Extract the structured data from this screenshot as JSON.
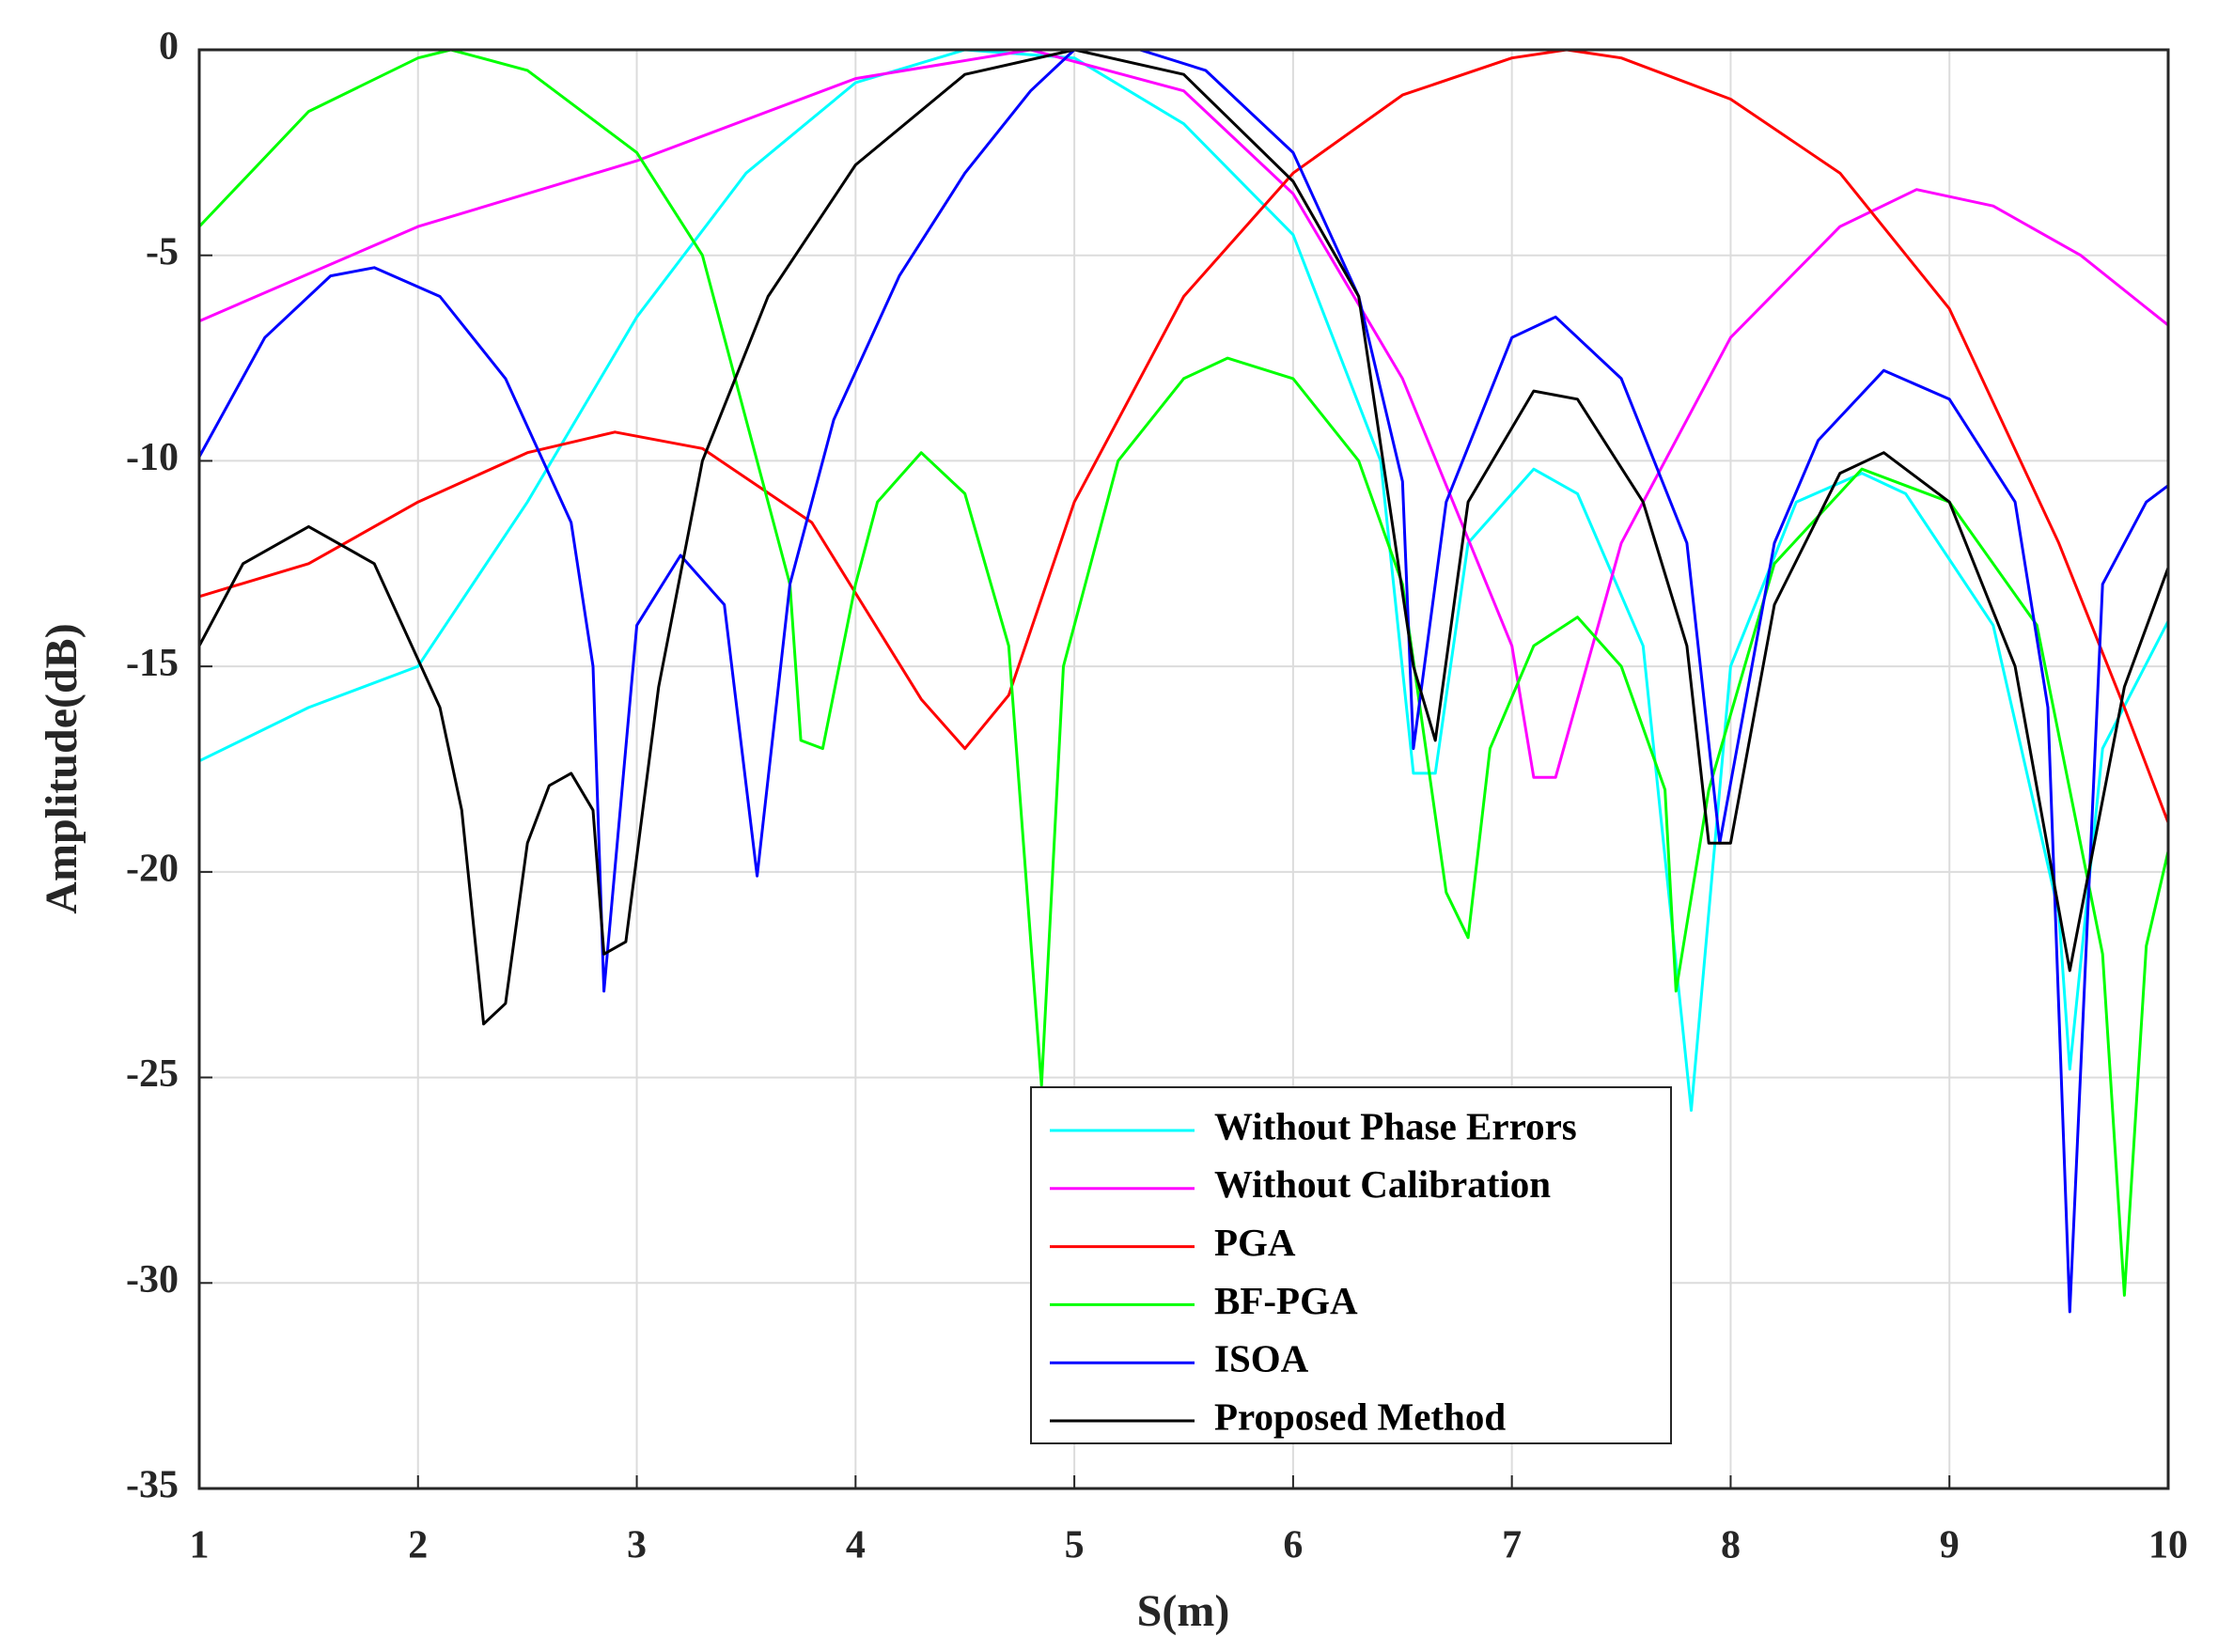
{
  "chart_data": {
    "type": "line",
    "x_label": "S(m)",
    "y_label": "Amplitude(dB)",
    "xlim": [
      1,
      10
    ],
    "ylim": [
      -35,
      0
    ],
    "xticks": [
      1,
      2,
      3,
      4,
      5,
      6,
      7,
      8,
      9,
      10
    ],
    "yticks": [
      -35,
      -30,
      -25,
      -20,
      -15,
      -10,
      -5,
      0
    ],
    "grid": true,
    "legend": "lower-center",
    "series": [
      {
        "name": "Without Phase Errors",
        "color": "#00ffff",
        "x": [
          1,
          1.5,
          2,
          2.5,
          3,
          3.5,
          4,
          4.5,
          5,
          5.5,
          6,
          6.4,
          6.55,
          6.65,
          6.8,
          7.1,
          7.3,
          7.6,
          7.82,
          8,
          8.3,
          8.6,
          8.8,
          9.2,
          9.5,
          9.55,
          9.7,
          10
        ],
        "values": [
          -17.3,
          -16,
          -15,
          -11,
          -6.5,
          -3,
          -0.8,
          0,
          -0.2,
          -1.8,
          -4.5,
          -10,
          -17.6,
          -17.6,
          -12,
          -10.2,
          -10.8,
          -14.5,
          -25.8,
          -15,
          -11,
          -10.3,
          -10.8,
          -14,
          -21,
          -24.8,
          -17,
          -13.9
        ]
      },
      {
        "name": "Without Calibration",
        "color": "#ff00ff",
        "x": [
          1,
          2,
          3,
          4,
          4.8,
          5.5,
          6,
          6.5,
          7,
          7.1,
          7.2,
          7.5,
          8,
          8.5,
          8.85,
          9.2,
          9.6,
          10
        ],
        "values": [
          -6.6,
          -4.3,
          -2.7,
          -0.7,
          0,
          -1,
          -3.5,
          -8,
          -14.5,
          -17.7,
          -17.7,
          -12,
          -7,
          -4.3,
          -3.4,
          -3.8,
          -5,
          -6.7
        ]
      },
      {
        "name": "PGA",
        "color": "#ff0000",
        "x": [
          1,
          1.5,
          2,
          2.5,
          2.9,
          3.3,
          3.8,
          4.3,
          4.5,
          4.7,
          5,
          5.5,
          6,
          6.5,
          7,
          7.25,
          7.5,
          8,
          8.5,
          9,
          9.5,
          9.8,
          10
        ],
        "values": [
          -13.3,
          -12.5,
          -11,
          -9.8,
          -9.3,
          -9.7,
          -11.5,
          -15.8,
          -17,
          -15.7,
          -11,
          -6,
          -3,
          -1.1,
          -0.2,
          0,
          -0.2,
          -1.2,
          -3,
          -6.3,
          -12,
          -16,
          -18.8
        ]
      },
      {
        "name": "BF-PGA",
        "color": "#00ff00",
        "x": [
          1,
          1.5,
          2,
          2.15,
          2.5,
          3,
          3.3,
          3.5,
          3.7,
          3.75,
          3.85,
          4,
          4.1,
          4.3,
          4.5,
          4.7,
          4.85,
          4.95,
          5.2,
          5.5,
          5.7,
          6,
          6.3,
          6.5,
          6.7,
          6.8,
          6.9,
          7.1,
          7.3,
          7.5,
          7.7,
          7.75,
          7.9,
          8.2,
          8.6,
          9,
          9.4,
          9.7,
          9.8,
          9.9,
          10
        ],
        "values": [
          -4.3,
          -1.5,
          -0.2,
          0,
          -0.5,
          -2.5,
          -5,
          -9,
          -13,
          -16.8,
          -17,
          -13,
          -11,
          -9.8,
          -10.8,
          -14.5,
          -25.2,
          -15,
          -10,
          -8,
          -7.5,
          -8,
          -10,
          -13,
          -20.5,
          -21.6,
          -17,
          -14.5,
          -13.8,
          -15,
          -18,
          -22.9,
          -18,
          -12.5,
          -10.2,
          -11,
          -14,
          -22,
          -30.3,
          -21.8,
          -19.5
        ]
      },
      {
        "name": "ISOA",
        "color": "#0000ff",
        "x": [
          1,
          1.3,
          1.6,
          1.8,
          2.1,
          2.4,
          2.7,
          2.8,
          2.85,
          3,
          3.2,
          3.4,
          3.55,
          3.7,
          3.9,
          4.2,
          4.5,
          4.8,
          5,
          5.3,
          5.6,
          6,
          6.3,
          6.5,
          6.55,
          6.7,
          7,
          7.2,
          7.5,
          7.8,
          7.95,
          8.2,
          8.4,
          8.7,
          9,
          9.3,
          9.45,
          9.55,
          9.7,
          9.9,
          10
        ],
        "values": [
          -9.9,
          -7,
          -5.5,
          -5.3,
          -6,
          -8,
          -11.5,
          -15,
          -22.9,
          -14,
          -12.3,
          -13.5,
          -20.1,
          -13,
          -9,
          -5.5,
          -3,
          -1,
          0,
          0,
          -0.5,
          -2.5,
          -6,
          -10.5,
          -17,
          -11,
          -7,
          -6.5,
          -8,
          -12,
          -19.3,
          -12,
          -9.5,
          -7.8,
          -8.5,
          -11,
          -16,
          -30.7,
          -13,
          -11,
          -10.6
        ]
      },
      {
        "name": "Proposed Method",
        "color": "#000000",
        "x": [
          1,
          1.2,
          1.5,
          1.8,
          2.1,
          2.2,
          2.3,
          2.4,
          2.5,
          2.6,
          2.7,
          2.8,
          2.85,
          2.95,
          3.1,
          3.3,
          3.6,
          4,
          4.5,
          5,
          5.5,
          6,
          6.3,
          6.55,
          6.65,
          6.8,
          7.1,
          7.3,
          7.6,
          7.8,
          7.9,
          8,
          8.2,
          8.5,
          8.7,
          9,
          9.3,
          9.55,
          9.8,
          10
        ],
        "values": [
          -14.5,
          -12.5,
          -11.6,
          -12.5,
          -16,
          -18.5,
          -23.7,
          -23.2,
          -19.3,
          -17.9,
          -17.6,
          -18.5,
          -22,
          -21.7,
          -15.5,
          -10,
          -6,
          -2.8,
          -0.6,
          0,
          -0.6,
          -3.2,
          -6,
          -15,
          -16.8,
          -11,
          -8.3,
          -8.5,
          -11,
          -14.5,
          -19.3,
          -19.3,
          -13.5,
          -10.3,
          -9.8,
          -11,
          -15,
          -22.4,
          -15.5,
          -12.6
        ]
      }
    ]
  }
}
